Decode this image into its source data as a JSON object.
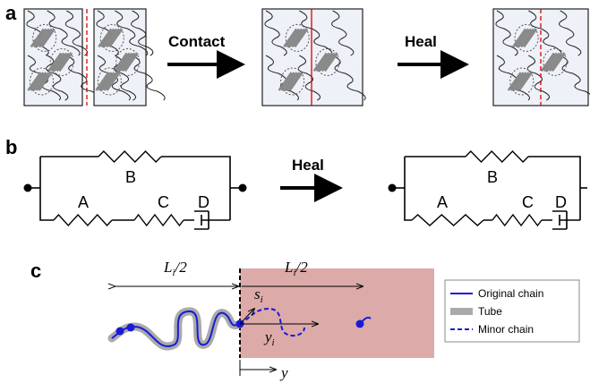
{
  "panel_a": {
    "label": "a",
    "arrow_1": "Contact",
    "arrow_2": "Heal"
  },
  "panel_b": {
    "label": "b",
    "arrow": "Heal",
    "left_circuit": {
      "B": "B",
      "A": "A",
      "C": "C",
      "D": "D"
    },
    "right_circuit": {
      "B": "B",
      "A": "A",
      "C": "C",
      "D": "D"
    }
  },
  "panel_c": {
    "label": "c",
    "half_length_left": {
      "symbol": "L",
      "subscript": "i",
      "rest": "/2"
    },
    "half_length_right": {
      "symbol": "L",
      "subscript": "i",
      "rest": "/2"
    },
    "s_label": {
      "symbol": "s",
      "subscript": "i"
    },
    "y_label": {
      "symbol": "y",
      "subscript": "i"
    },
    "axis_label": "y",
    "legend": [
      "Original chain",
      "Tube",
      "Minor chain"
    ]
  }
}
